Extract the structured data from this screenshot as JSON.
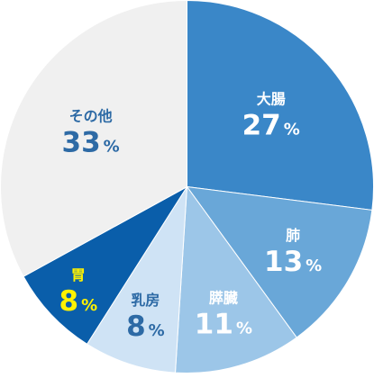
{
  "chart_data": {
    "type": "pie",
    "start": "top",
    "direction": "clockwise",
    "slices": [
      {
        "label": "大腸",
        "value": 27,
        "color": "#3a87c8",
        "text_color": "#ffffff"
      },
      {
        "label": "肺",
        "value": 13,
        "color": "#69a7d8",
        "text_color": "#ffffff"
      },
      {
        "label": "膵臓",
        "value": 11,
        "color": "#9cc6e8",
        "text_color": "#ffffff"
      },
      {
        "label": "乳房",
        "value": 8,
        "color": "#cfe3f5",
        "text_color": "#2d6aa5"
      },
      {
        "label": "胃",
        "value": 8,
        "color": "#0a5eaa",
        "text_color": "#fff200"
      },
      {
        "label": "その他",
        "value": 33,
        "color": "#f0f0f0",
        "text_color": "#2d6aa5"
      }
    ],
    "unit": "%"
  }
}
